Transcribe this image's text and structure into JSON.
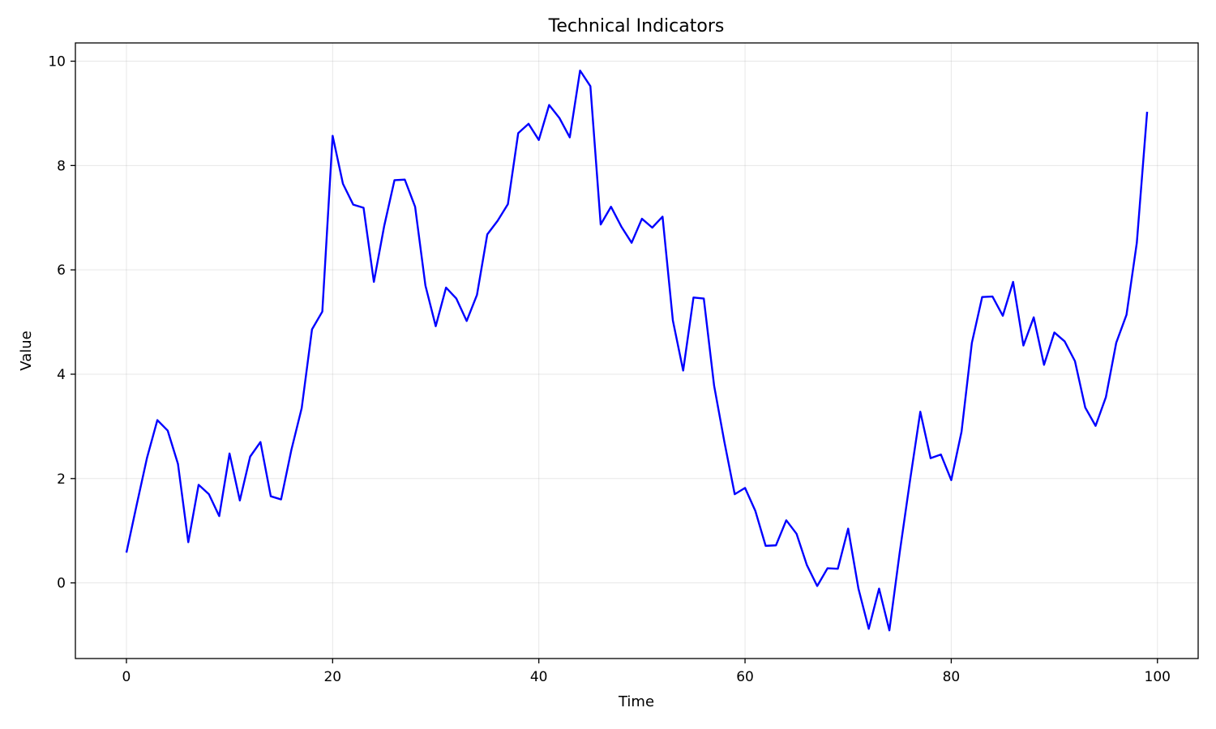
{
  "chart_data": {
    "type": "line",
    "title": "Technical Indicators",
    "xlabel": "Time",
    "ylabel": "Value",
    "xlim": [
      -4.95,
      103.95
    ],
    "ylim": [
      -1.45,
      10.35
    ],
    "xticks": [
      0,
      20,
      40,
      60,
      80,
      100
    ],
    "yticks": [
      0,
      2,
      4,
      6,
      8,
      10
    ],
    "grid": true,
    "legend": "none",
    "series": [
      {
        "color": "#0000ff",
        "x": [
          0,
          1,
          2,
          3,
          4,
          5,
          6,
          7,
          8,
          9,
          10,
          11,
          12,
          13,
          14,
          15,
          16,
          17,
          18,
          19,
          20,
          21,
          22,
          23,
          24,
          25,
          26,
          27,
          28,
          29,
          30,
          31,
          32,
          33,
          34,
          35,
          36,
          37,
          38,
          39,
          40,
          41,
          42,
          43,
          44,
          45,
          46,
          47,
          48,
          49,
          50,
          51,
          52,
          53,
          54,
          55,
          56,
          57,
          58,
          59,
          60,
          61,
          62,
          63,
          64,
          65,
          66,
          67,
          68,
          69,
          70,
          71,
          72,
          73,
          74,
          75,
          76,
          77,
          78,
          79,
          80,
          81,
          82,
          83,
          84,
          85,
          86,
          87,
          88,
          89,
          90,
          91,
          92,
          93,
          94,
          95,
          96,
          97,
          98,
          99
        ],
        "y": [
          0.58,
          1.5,
          2.4,
          3.12,
          2.92,
          2.28,
          0.78,
          1.88,
          1.7,
          1.28,
          2.48,
          1.58,
          2.42,
          2.7,
          1.66,
          1.6,
          2.55,
          3.35,
          4.86,
          5.2,
          8.57,
          7.65,
          7.25,
          7.19,
          5.77,
          6.84,
          7.72,
          7.73,
          7.21,
          5.7,
          4.92,
          5.66,
          5.45,
          5.02,
          5.52,
          6.68,
          6.94,
          7.26,
          8.62,
          8.8,
          8.49,
          9.16,
          8.91,
          8.54,
          9.82,
          9.52,
          6.87,
          7.21,
          6.83,
          6.52,
          6.98,
          6.81,
          7.02,
          5.03,
          4.07,
          5.47,
          5.45,
          3.78,
          2.7,
          1.7,
          1.82,
          1.38,
          0.71,
          0.72,
          1.2,
          0.94,
          0.34,
          -0.06,
          0.28,
          0.27,
          1.04,
          -0.11,
          -0.88,
          -0.11,
          -0.91,
          0.58,
          1.96,
          3.28,
          2.39,
          2.46,
          1.97,
          2.9,
          4.6,
          5.48,
          5.49,
          5.12,
          5.77,
          4.55,
          5.09,
          4.18,
          4.8,
          4.63,
          4.25,
          3.36,
          3.01,
          3.56,
          4.6,
          5.14,
          6.52,
          9.03
        ]
      }
    ]
  }
}
